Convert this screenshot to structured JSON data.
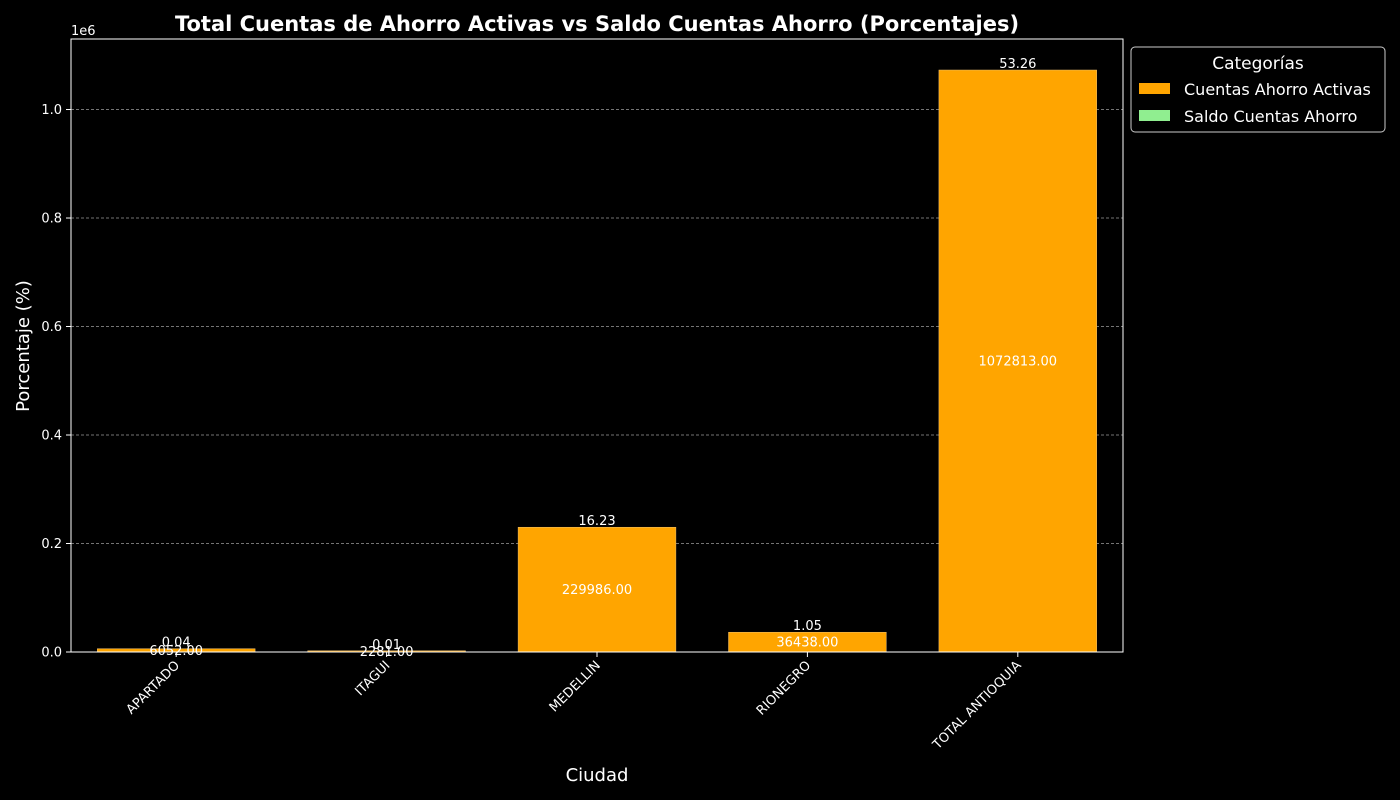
{
  "chart_data": {
    "type": "bar",
    "title": "Total Cuentas de Ahorro Activas vs Saldo Cuentas Ahorro (Porcentajes)",
    "xlabel": "Ciudad",
    "ylabel": "Porcentaje (%)",
    "y_offset_label": "1e6",
    "categories": [
      "APARTADO",
      "ITAGUI",
      "MEDELLIN",
      "RIONEGRO",
      "TOTAL ANTIOQUIA"
    ],
    "ylim": [
      0,
      1130000
    ],
    "yticks": [
      0,
      200000,
      400000,
      600000,
      800000,
      1000000
    ],
    "ytick_labels": [
      "0.0",
      "0.2",
      "0.4",
      "0.6",
      "0.8",
      "1.0"
    ],
    "grid": true,
    "legend": {
      "title": "Categorías",
      "placement": "top-right-outside"
    },
    "series": [
      {
        "name": "Cuentas Ahorro Activas",
        "color": "#FFA500",
        "values": [
          6052,
          2281,
          229986,
          36438,
          1072813
        ],
        "value_labels": [
          "6052.00",
          "2281.00",
          "229986.00",
          "36438.00",
          "1072813.00"
        ],
        "percent_labels": [
          "0.04",
          "0.01",
          "16.23",
          "1.05",
          "53.26"
        ]
      },
      {
        "name": "Saldo Cuentas Ahorro",
        "color": "#90EE90",
        "values": [
          0.04,
          0.01,
          16.23,
          1.05,
          53.26
        ]
      }
    ]
  }
}
